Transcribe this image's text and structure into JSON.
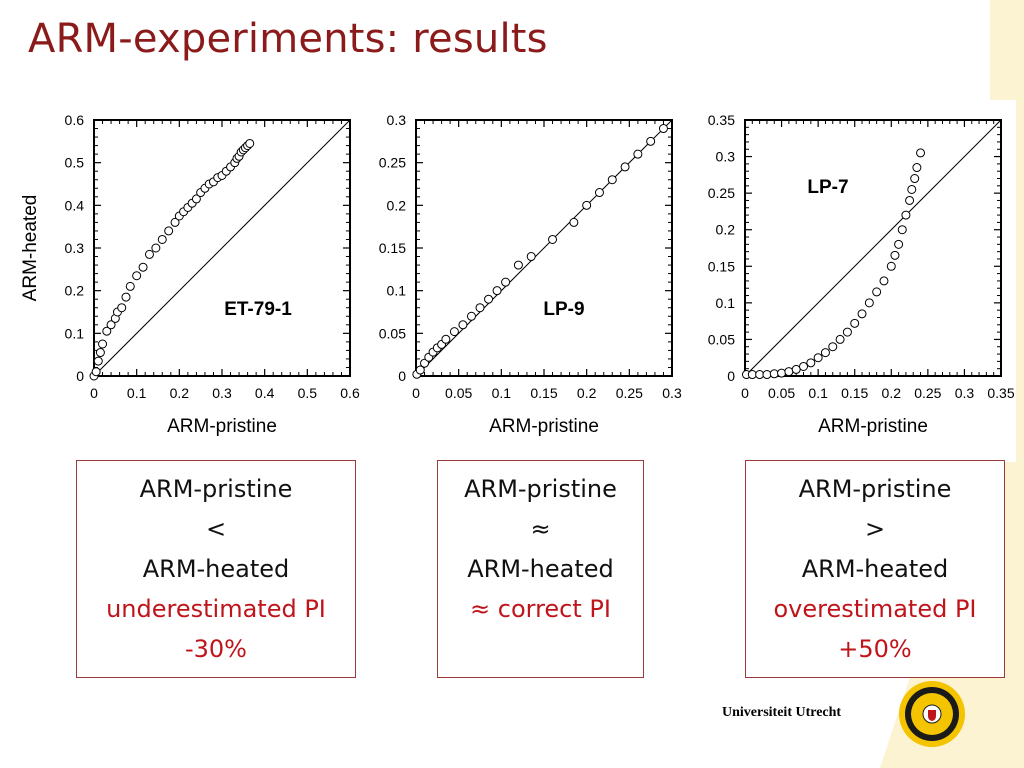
{
  "slide": {
    "title": "ARM-experiments: results"
  },
  "chart_data": [
    {
      "type": "scatter",
      "title": "",
      "annotation": "ET-79-1",
      "xlabel": "ARM-pristine",
      "ylabel": "ARM-heated",
      "xlim": [
        0,
        0.6
      ],
      "ylim": [
        0,
        0.6
      ],
      "xticks": [
        0,
        0.1,
        0.2,
        0.3,
        0.4,
        0.5,
        0.6
      ],
      "yticks": [
        0,
        0.1,
        0.2,
        0.3,
        0.4,
        0.5,
        0.6
      ],
      "grid": false,
      "reference_line": "y = x",
      "x": [
        0.0,
        0.005,
        0.01,
        0.015,
        0.02,
        0.03,
        0.04,
        0.05,
        0.055,
        0.065,
        0.075,
        0.085,
        0.1,
        0.115,
        0.13,
        0.145,
        0.16,
        0.175,
        0.19,
        0.2,
        0.21,
        0.22,
        0.23,
        0.24,
        0.25,
        0.26,
        0.27,
        0.28,
        0.29,
        0.3,
        0.31,
        0.32,
        0.33,
        0.335,
        0.34,
        0.345,
        0.35,
        0.355,
        0.36,
        0.365
      ],
      "y": [
        0.0,
        0.01,
        0.035,
        0.055,
        0.075,
        0.105,
        0.12,
        0.135,
        0.15,
        0.16,
        0.185,
        0.21,
        0.235,
        0.255,
        0.285,
        0.3,
        0.32,
        0.34,
        0.36,
        0.375,
        0.385,
        0.395,
        0.405,
        0.415,
        0.43,
        0.44,
        0.45,
        0.455,
        0.465,
        0.47,
        0.48,
        0.49,
        0.5,
        0.51,
        0.515,
        0.525,
        0.53,
        0.535,
        0.54,
        0.545
      ]
    },
    {
      "type": "scatter",
      "title": "",
      "annotation": "LP-9",
      "xlabel": "ARM-pristine",
      "ylabel": "",
      "xlim": [
        0,
        0.3
      ],
      "ylim": [
        0,
        0.3
      ],
      "xticks": [
        0,
        0.05,
        0.1,
        0.15,
        0.2,
        0.25,
        0.3
      ],
      "yticks": [
        0,
        0.05,
        0.1,
        0.15,
        0.2,
        0.25,
        0.3
      ],
      "grid": false,
      "reference_line": "y = x",
      "x": [
        0.001,
        0.005,
        0.01,
        0.015,
        0.02,
        0.025,
        0.03,
        0.035,
        0.045,
        0.055,
        0.065,
        0.075,
        0.085,
        0.095,
        0.105,
        0.12,
        0.135,
        0.16,
        0.185,
        0.2,
        0.215,
        0.23,
        0.245,
        0.26,
        0.275,
        0.29
      ],
      "y": [
        0.002,
        0.007,
        0.015,
        0.022,
        0.028,
        0.033,
        0.037,
        0.043,
        0.052,
        0.06,
        0.07,
        0.08,
        0.09,
        0.1,
        0.11,
        0.13,
        0.14,
        0.16,
        0.18,
        0.2,
        0.215,
        0.23,
        0.245,
        0.26,
        0.275,
        0.29
      ]
    },
    {
      "type": "scatter",
      "title": "",
      "annotation": "LP-7",
      "xlabel": "ARM-pristine",
      "ylabel": "",
      "xlim": [
        0,
        0.35
      ],
      "ylim": [
        0,
        0.35
      ],
      "xticks": [
        0,
        0.05,
        0.1,
        0.15,
        0.2,
        0.25,
        0.3,
        0.35
      ],
      "yticks": [
        0,
        0.05,
        0.1,
        0.15,
        0.2,
        0.25,
        0.3,
        0.35
      ],
      "grid": false,
      "reference_line": "y = x",
      "x": [
        0.002,
        0.01,
        0.02,
        0.03,
        0.04,
        0.05,
        0.06,
        0.07,
        0.08,
        0.09,
        0.1,
        0.11,
        0.12,
        0.13,
        0.14,
        0.15,
        0.16,
        0.17,
        0.18,
        0.19,
        0.2,
        0.205,
        0.21,
        0.215,
        0.22,
        0.225,
        0.228,
        0.232,
        0.235,
        0.24
      ],
      "y": [
        0.002,
        0.002,
        0.002,
        0.002,
        0.003,
        0.004,
        0.006,
        0.009,
        0.013,
        0.018,
        0.025,
        0.032,
        0.04,
        0.05,
        0.06,
        0.072,
        0.085,
        0.1,
        0.115,
        0.13,
        0.15,
        0.165,
        0.18,
        0.2,
        0.22,
        0.24,
        0.255,
        0.27,
        0.285,
        0.305
      ]
    }
  ],
  "result_boxes": [
    {
      "lines": [
        {
          "text": "ARM-pristine",
          "red": false
        },
        {
          "text": "<",
          "red": false
        },
        {
          "text": "ARM-heated",
          "red": false
        },
        {
          "text": "underestimated PI",
          "red": true
        },
        {
          "text": "-30%",
          "red": true
        }
      ]
    },
    {
      "lines": [
        {
          "text": "ARM-pristine",
          "red": false
        },
        {
          "text": "≈",
          "red": false
        },
        {
          "text": "ARM-heated",
          "red": false
        },
        {
          "text": "≈ correct PI",
          "red": true
        }
      ]
    },
    {
      "lines": [
        {
          "text": "ARM-pristine",
          "red": false
        },
        {
          "text": ">",
          "red": false
        },
        {
          "text": "ARM-heated",
          "red": false
        },
        {
          "text": "overestimated PI",
          "red": true
        },
        {
          "text": "+50%",
          "red": true
        }
      ]
    }
  ],
  "branding": {
    "university": "Universiteit Utrecht",
    "logo": "sun-seal-icon",
    "accent_color": "#8b1a1a",
    "highlight_color": "#c0141b"
  }
}
